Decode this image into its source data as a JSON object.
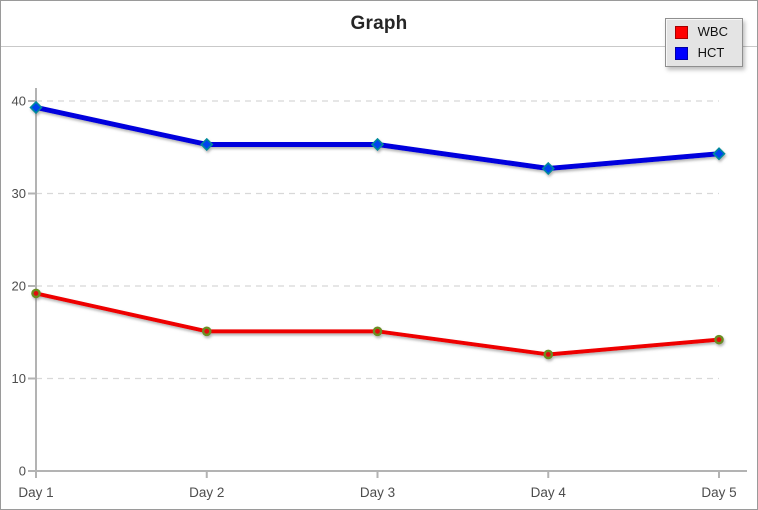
{
  "window": {
    "title_label": "Graph"
  },
  "chart_data": {
    "type": "line",
    "title": "Graph",
    "xlabel": "",
    "ylabel": "",
    "categories": [
      "Day 1",
      "Day 2",
      "Day 3",
      "Day 4",
      "Day 5"
    ],
    "series": [
      {
        "name": "WBC",
        "values": [
          19.2,
          15.1,
          15.1,
          12.6,
          14.2
        ],
        "line_color": "#ee0000",
        "marker_shape": "circle",
        "marker_fill": "#e01010",
        "marker_stroke": "#6b8e23"
      },
      {
        "name": "HCT",
        "values": [
          39.3,
          35.3,
          35.3,
          32.7,
          34.3
        ],
        "line_color": "#0000dd",
        "marker_shape": "diamond",
        "marker_fill": "#0044ee",
        "marker_stroke": "#008b9b"
      }
    ],
    "ylim": [
      0,
      40
    ],
    "y_ticks": [
      0,
      10,
      20,
      30,
      40
    ],
    "y_tick_labels": [
      "0",
      "10",
      "20",
      "30",
      "40"
    ],
    "grid": "horizontal-dashed",
    "legend_position": "top-right",
    "legend_colors": [
      "#ff0000",
      "#0000ff"
    ]
  }
}
